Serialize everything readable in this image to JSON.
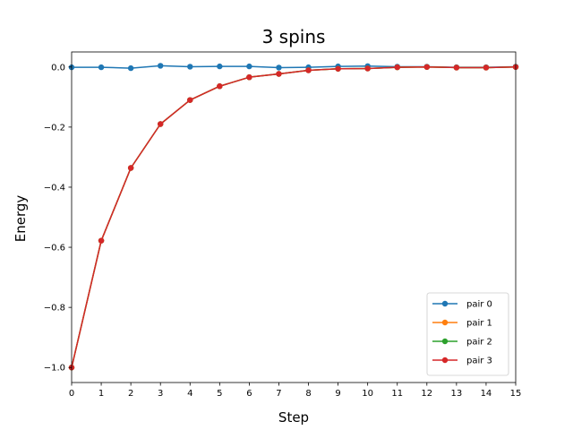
{
  "chart_data": {
    "type": "line",
    "title": "3 spins",
    "xlabel": "Step",
    "ylabel": "Energy",
    "xlim": [
      0,
      15
    ],
    "ylim": [
      -1.05,
      0.05
    ],
    "xticks": [
      0,
      1,
      2,
      3,
      4,
      5,
      6,
      7,
      8,
      9,
      10,
      11,
      12,
      13,
      14,
      15
    ],
    "yticks": [
      0.0,
      -0.2,
      -0.4,
      -0.6,
      -0.8,
      -1.0
    ],
    "ytick_labels": [
      "0.0",
      "−0.2",
      "−0.4",
      "−0.6",
      "−0.8",
      "−1.0"
    ],
    "grid": false,
    "legend_position": "lower-right",
    "x": [
      0,
      1,
      2,
      3,
      4,
      5,
      6,
      7,
      8,
      9,
      10,
      11,
      12,
      13,
      14,
      15
    ],
    "series": [
      {
        "name": "pair 0",
        "color": "#1f77b4",
        "values": [
          -0.001,
          -0.001,
          -0.004,
          0.004,
          0.001,
          0.002,
          0.002,
          -0.002,
          -0.001,
          0.002,
          0.003,
          0.001,
          0.001,
          -0.001,
          -0.001,
          0.001
        ]
      },
      {
        "name": "pair 1",
        "color": "#ff7f0e",
        "values": [
          -1.0,
          -0.578,
          -0.336,
          -0.19,
          -0.11,
          -0.064,
          -0.034,
          -0.023,
          -0.011,
          -0.006,
          -0.005,
          -0.001,
          0.0,
          -0.002,
          -0.002,
          0.0
        ]
      },
      {
        "name": "pair 2",
        "color": "#2ca02c",
        "values": [
          -1.0,
          -0.578,
          -0.336,
          -0.19,
          -0.11,
          -0.064,
          -0.034,
          -0.023,
          -0.011,
          -0.006,
          -0.005,
          -0.001,
          0.0,
          -0.002,
          -0.002,
          0.0
        ]
      },
      {
        "name": "pair 3",
        "color": "#d62728",
        "values": [
          -1.0,
          -0.578,
          -0.336,
          -0.19,
          -0.11,
          -0.064,
          -0.034,
          -0.023,
          -0.011,
          -0.006,
          -0.005,
          -0.001,
          0.0,
          -0.002,
          -0.002,
          0.0
        ]
      }
    ]
  }
}
